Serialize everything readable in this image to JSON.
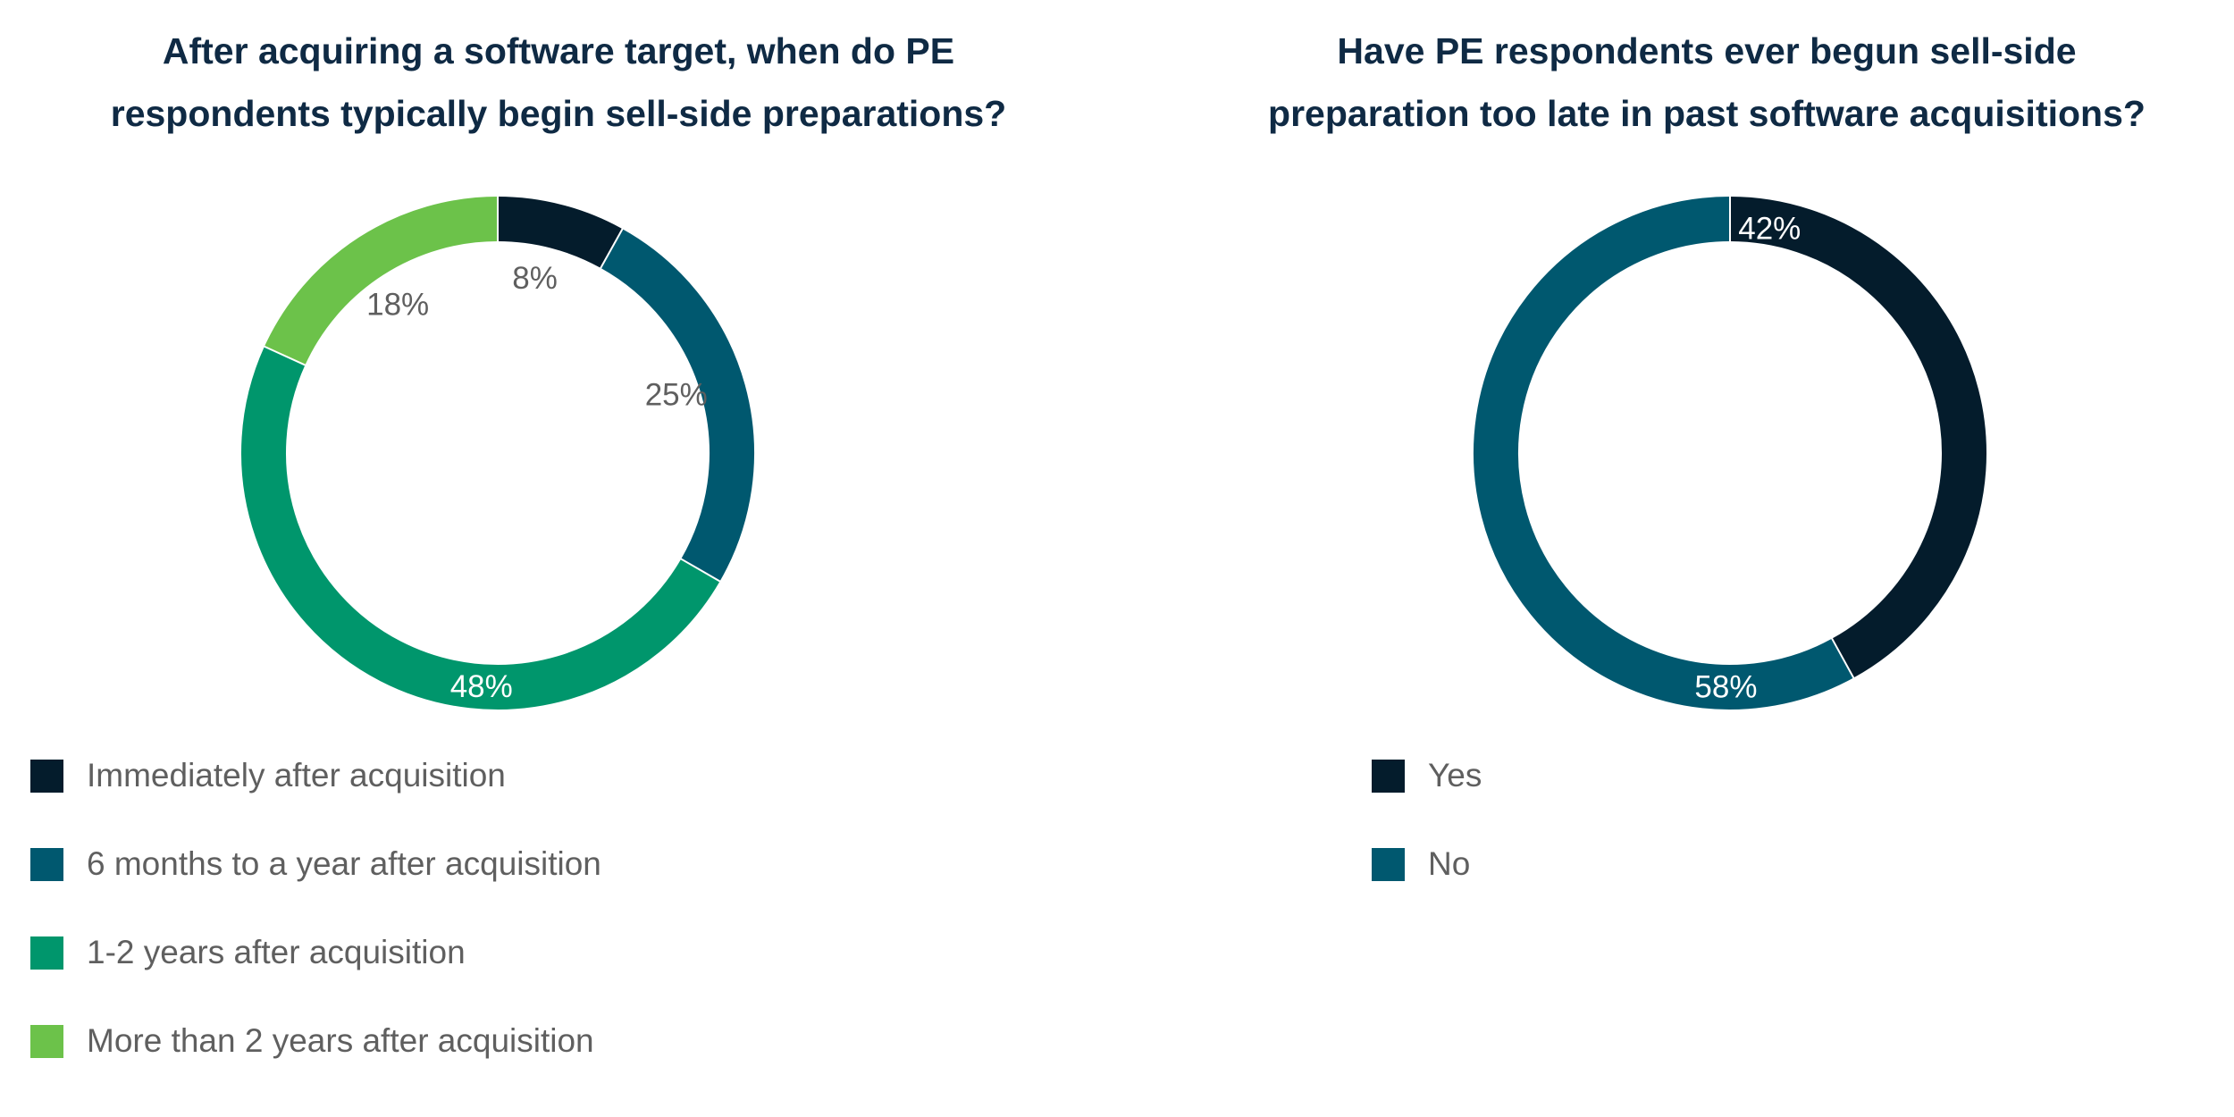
{
  "chart_data": [
    {
      "type": "pie",
      "variant": "donut",
      "title_lines": [
        "After acquiring a software target, when do PE",
        "respondents typically begin sell-side preparations?"
      ],
      "categories": [
        "Immediately after acquisition",
        "6 months to a year after acquisition",
        "1-2 years after acquisition",
        "More than 2 years after acquisition"
      ],
      "values": [
        8,
        25,
        48,
        18
      ],
      "data_labels": [
        "8%",
        "25%",
        "48%",
        "18%"
      ],
      "colors": [
        "#041c2c",
        "#00586f",
        "#00966c",
        "#6cc24a"
      ],
      "label_colors": [
        "#5f5f5f",
        "#5f5f5f",
        "#ffffff",
        "#5f5f5f"
      ],
      "label_placement": [
        "inside",
        "inside",
        "on-ring",
        "inside"
      ],
      "legend_position": "bottom-left"
    },
    {
      "type": "pie",
      "variant": "donut",
      "title_lines": [
        "Have PE respondents ever begun sell-side",
        "preparation too late in past software acquisitions?"
      ],
      "categories": [
        "Yes",
        "No"
      ],
      "values": [
        42,
        58
      ],
      "data_labels": [
        "42%",
        "58%"
      ],
      "colors": [
        "#041c2c",
        "#00586f"
      ],
      "label_colors": [
        "#ffffff",
        "#ffffff"
      ],
      "label_placement": [
        "on-ring-start",
        "on-ring"
      ],
      "legend_position": "bottom-left"
    }
  ]
}
